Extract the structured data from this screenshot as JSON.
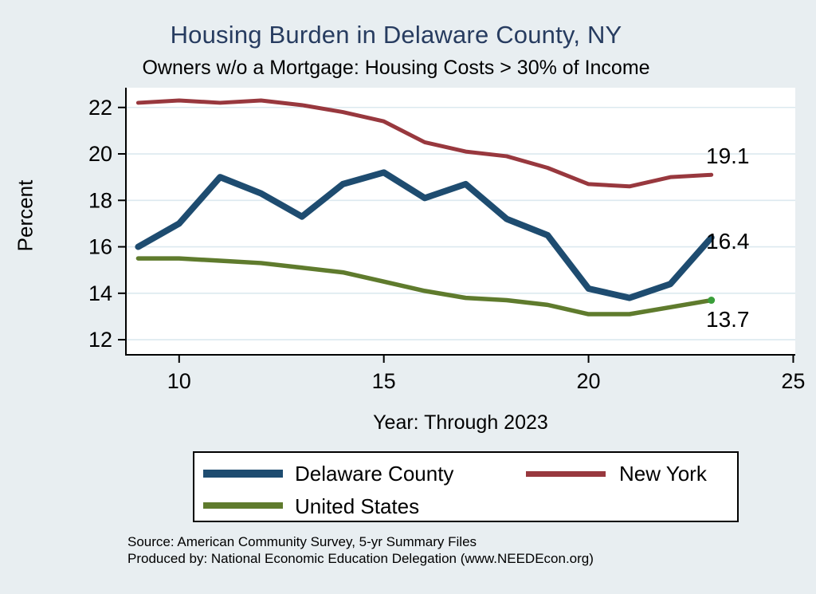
{
  "page": {
    "title": "Housing Burden in Delaware County, NY",
    "subtitle": "Owners w/o a Mortgage: Housing Costs > 30% of Income",
    "notes": [
      "Source: American Community Survey, 5-yr Summary Files",
      "Produced by: National Economic Education Delegation (www.NEEDEcon.org)"
    ]
  },
  "colors": {
    "background": "#e8eef1",
    "title_text": "#273c60",
    "plot_background": "#ffffff",
    "gridline": "#dce9ef",
    "axis": "#000000",
    "delaware_county_line": "#1e4c70",
    "new_york_line": "#98383e",
    "united_states_line": "#5f7b2d",
    "united_states_end_dot": "#3a9e3a"
  },
  "chart_data": {
    "type": "line",
    "title": "Housing Burden in Delaware County, NY",
    "subtitle": "Owners w/o a Mortgage: Housing Costs > 30% of Income",
    "xlabel": "Year: Through 2023",
    "ylabel": "Percent",
    "grid": true,
    "legend_position": "bottom",
    "x": [
      9,
      10,
      11,
      12,
      13,
      14,
      15,
      16,
      17,
      18,
      19,
      20,
      21,
      22,
      23
    ],
    "x_years": [
      2009,
      2010,
      2011,
      2012,
      2013,
      2014,
      2015,
      2016,
      2017,
      2018,
      2019,
      2020,
      2021,
      2022,
      2023
    ],
    "x_ticks": [
      10,
      15,
      20,
      25
    ],
    "y_ticks": [
      12,
      14,
      16,
      18,
      20,
      22
    ],
    "xlim": [
      8.7,
      25.05
    ],
    "ylim": [
      11.35,
      22.85
    ],
    "series": [
      {
        "name": "Delaware County",
        "color": "#1e4c70",
        "line_width": 8,
        "end_label": "16.4",
        "end_marker": false,
        "values": [
          16.0,
          17.0,
          19.0,
          18.3,
          17.3,
          18.7,
          19.2,
          18.1,
          18.7,
          17.2,
          16.5,
          14.2,
          13.8,
          14.4,
          16.4
        ]
      },
      {
        "name": "New York",
        "color": "#98383e",
        "line_width": 5,
        "end_label": "19.1",
        "end_marker": false,
        "values": [
          22.2,
          22.3,
          22.2,
          22.3,
          22.1,
          21.8,
          21.4,
          20.5,
          20.1,
          19.9,
          19.4,
          18.7,
          18.6,
          19.0,
          19.1
        ]
      },
      {
        "name": "United States",
        "color": "#5f7b2d",
        "line_width": 5.5,
        "end_label": "13.7",
        "end_marker": true,
        "values": [
          15.5,
          15.5,
          15.4,
          15.3,
          15.1,
          14.9,
          14.5,
          14.1,
          13.8,
          13.7,
          13.5,
          13.1,
          13.1,
          13.4,
          13.7
        ]
      }
    ]
  },
  "legend": {
    "items": [
      {
        "label": "Delaware County",
        "color": "#1e4c70"
      },
      {
        "label": "New York",
        "color": "#98383e"
      },
      {
        "label": "United States",
        "color": "#5f7b2d"
      }
    ]
  }
}
